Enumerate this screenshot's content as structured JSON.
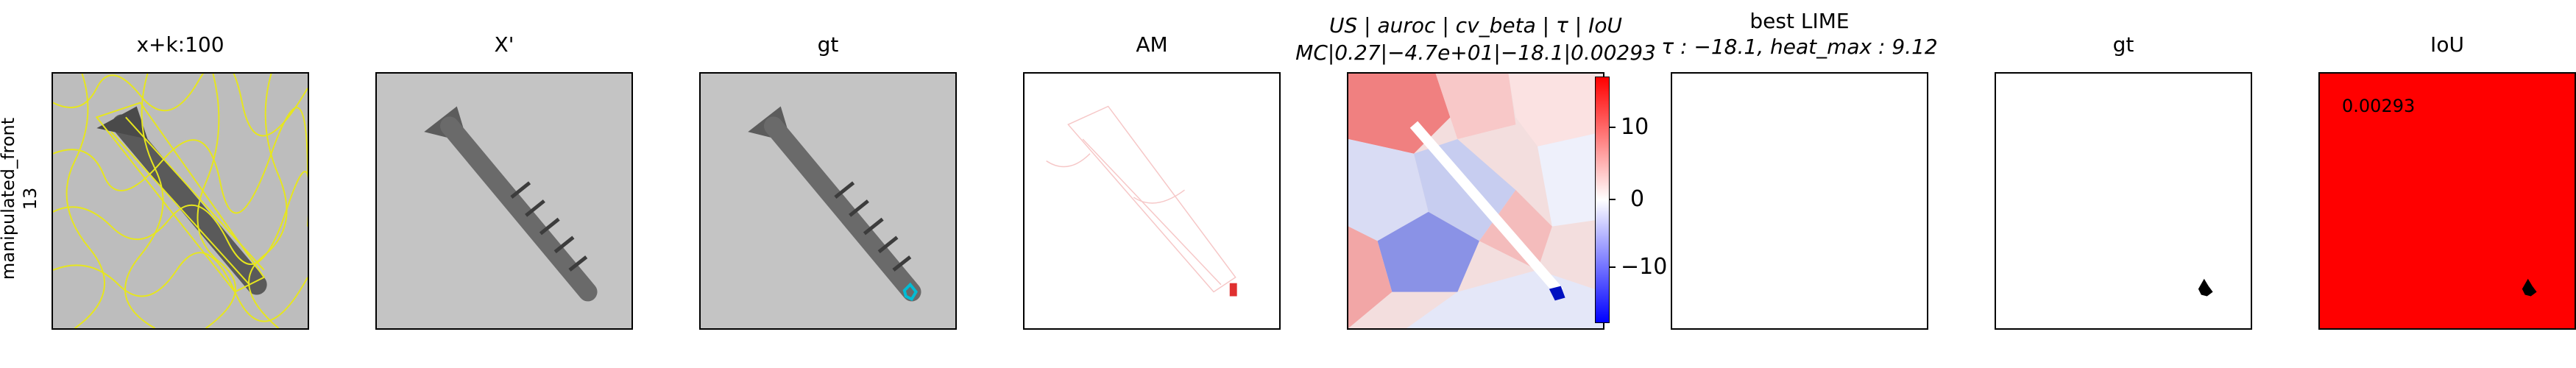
{
  "row_label": {
    "line1": "manipulated_front",
    "line2": "13"
  },
  "panels": [
    {
      "title": "x+k:100"
    },
    {
      "title": "X'"
    },
    {
      "title": "gt"
    },
    {
      "title": "AM"
    },
    {
      "title_line1": "US | auroc | cv_beta | τ | IoU",
      "title_line2": "MC|0.27|−4.7e+01|−18.1|0.00293"
    },
    {
      "title_line1": "best LIME",
      "title_line2": "τ : −18.1, heat_max : 9.12"
    },
    {
      "title": "gt"
    },
    {
      "title": "IoU"
    }
  ],
  "colorbar": {
    "ticks": [
      "10",
      "0",
      "−10"
    ],
    "colors": {
      "high": "#ff0000",
      "mid": "#ffffff",
      "low": "#0000ff"
    }
  },
  "iou_value": "0.00293",
  "colors": {
    "iou_background": "#ff0000",
    "superpixel_boundary": "#e6e61e",
    "gt_highlight": "#00bcd4"
  }
}
